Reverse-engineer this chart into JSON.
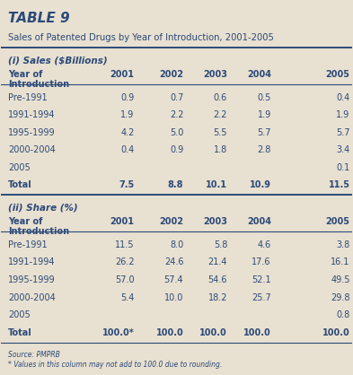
{
  "title": "TABLE 9",
  "subtitle": "Sales of Patented Drugs by Year of Introduction, 2001-2005",
  "bg_color": "#e8e0d0",
  "header_color": "#2b4a7a",
  "text_color": "#2b4a7a",
  "section1_header": "(i) Sales ($Billions)",
  "section2_header": "(ii) Share (%)",
  "sales_rows": [
    [
      "Pre-1991",
      "0.9",
      "0.7",
      "0.6",
      "0.5",
      "0.4"
    ],
    [
      "1991-1994",
      "1.9",
      "2.2",
      "2.2",
      "1.9",
      "1.9"
    ],
    [
      "1995-1999",
      "4.2",
      "5.0",
      "5.5",
      "5.7",
      "5.7"
    ],
    [
      "2000-2004",
      "0.4",
      "0.9",
      "1.8",
      "2.8",
      "3.4"
    ],
    [
      "2005",
      "",
      "",
      "",
      "",
      "0.1"
    ],
    [
      "Total",
      "7.5",
      "8.8",
      "10.1",
      "10.9",
      "11.5"
    ]
  ],
  "share_rows": [
    [
      "Pre-1991",
      "11.5",
      "8.0",
      "5.8",
      "4.6",
      "3.8"
    ],
    [
      "1991-1994",
      "26.2",
      "24.6",
      "21.4",
      "17.6",
      "16.1"
    ],
    [
      "1995-1999",
      "57.0",
      "57.4",
      "54.6",
      "52.1",
      "49.5"
    ],
    [
      "2000-2004",
      "5.4",
      "10.0",
      "18.2",
      "25.7",
      "29.8"
    ],
    [
      "2005",
      "",
      "",
      "",
      "",
      "0.8"
    ],
    [
      "Total",
      "100.0*",
      "100.0",
      "100.0",
      "100.0",
      "100.0"
    ]
  ],
  "source": "Source: PMPRB",
  "footnote": "* Values in this column may not add to 100.0 due to rounding.",
  "years": [
    "2001",
    "2002",
    "2003",
    "2004",
    "2005"
  ]
}
